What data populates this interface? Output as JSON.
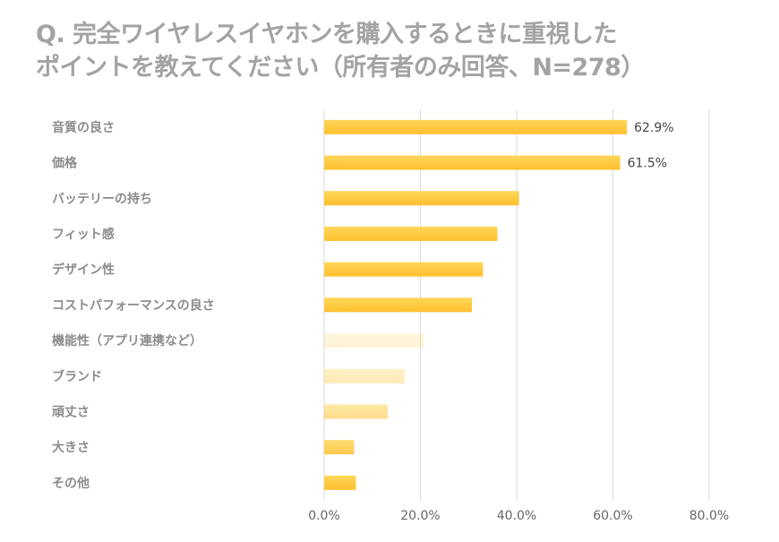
{
  "chart_data": {
    "type": "bar",
    "orientation": "horizontal",
    "title": "Q. 完全ワイヤレスイヤホンを購入するときに重視したポイントを教えてください（所有者のみ回答、N=278）",
    "title_line1": "Q. 完全ワイヤレスイヤホンを購入するときに重視した",
    "title_line2": "ポイントを教えてください（所有者のみ回答、N=278）",
    "categories": [
      "音質の良さ",
      "価格",
      "バッテリーの持ち",
      "フィット感",
      "デザイン性",
      "コストパフォーマンスの良さ",
      "機能性（アプリ連携など）",
      "ブランド",
      "頑丈さ",
      "大きさ",
      "その他"
    ],
    "values": [
      62.9,
      61.5,
      40.5,
      36.0,
      33.0,
      30.7,
      20.7,
      16.7,
      13.2,
      6.2,
      6.6
    ],
    "data_labels": [
      "62.9%",
      "61.5%",
      "",
      "",
      "",
      "",
      "",
      "",
      "",
      "",
      ""
    ],
    "bar_opacity": [
      1,
      1,
      1,
      1,
      1,
      1,
      0.2,
      0.35,
      0.55,
      0.85,
      1
    ],
    "xlim": [
      0,
      80
    ],
    "xticks": [
      "0.0%",
      "20.0%",
      "40.0%",
      "60.0%",
      "80.0%"
    ],
    "xtick_values": [
      0,
      20,
      40,
      60,
      80
    ],
    "grid": true,
    "colors": {
      "bar_top": "#ffd75a",
      "bar_bottom": "#ffbf2e",
      "grid": "#d9d9d9",
      "title": "#a3a3a3"
    }
  }
}
